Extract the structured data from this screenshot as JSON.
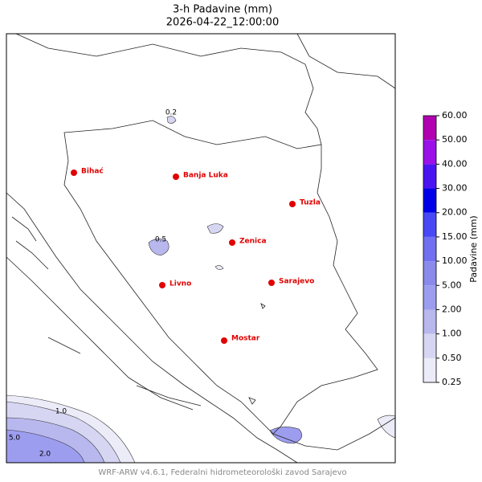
{
  "title": "3-h Padavine (mm)",
  "subtitle": "2026-04-22_12:00:00",
  "cities": [
    "Bihać",
    "Banja Luka",
    "Tuzla",
    "Zenica",
    "Livno",
    "Sarajevo",
    "Mostar"
  ],
  "contour_labels": [
    "0.2",
    "0.5",
    "1.0",
    "2.0",
    "5.0"
  ],
  "colorbar": {
    "label": "Padavine (mm)",
    "ticks": [
      {
        "value": 0.25,
        "label": "0.25"
      },
      {
        "value": 0.5,
        "label": "0.50"
      },
      {
        "value": 1,
        "label": "1.00"
      },
      {
        "value": 2,
        "label": "2.00"
      },
      {
        "value": 5,
        "label": "5.00"
      },
      {
        "value": 10,
        "label": "10.00"
      },
      {
        "value": 15,
        "label": "15.00"
      },
      {
        "value": 20,
        "label": "20.00"
      },
      {
        "value": 30,
        "label": "30.00"
      },
      {
        "value": 40,
        "label": "40.00"
      },
      {
        "value": 50,
        "label": "50.00"
      },
      {
        "value": 60,
        "label": "60.00"
      }
    ],
    "colors": [
      "#ecebf8",
      "#d7d6f2",
      "#b8b8ee",
      "#9d9df0",
      "#8a8aeb",
      "#7070f0",
      "#4848f5",
      "#0000e8",
      "#4a14f0",
      "#9a10e8",
      "#b000b0"
    ]
  },
  "footer": "WRF-ARW v4.6.1, Federalni hidrometeorološki zavod Sarajevo"
}
